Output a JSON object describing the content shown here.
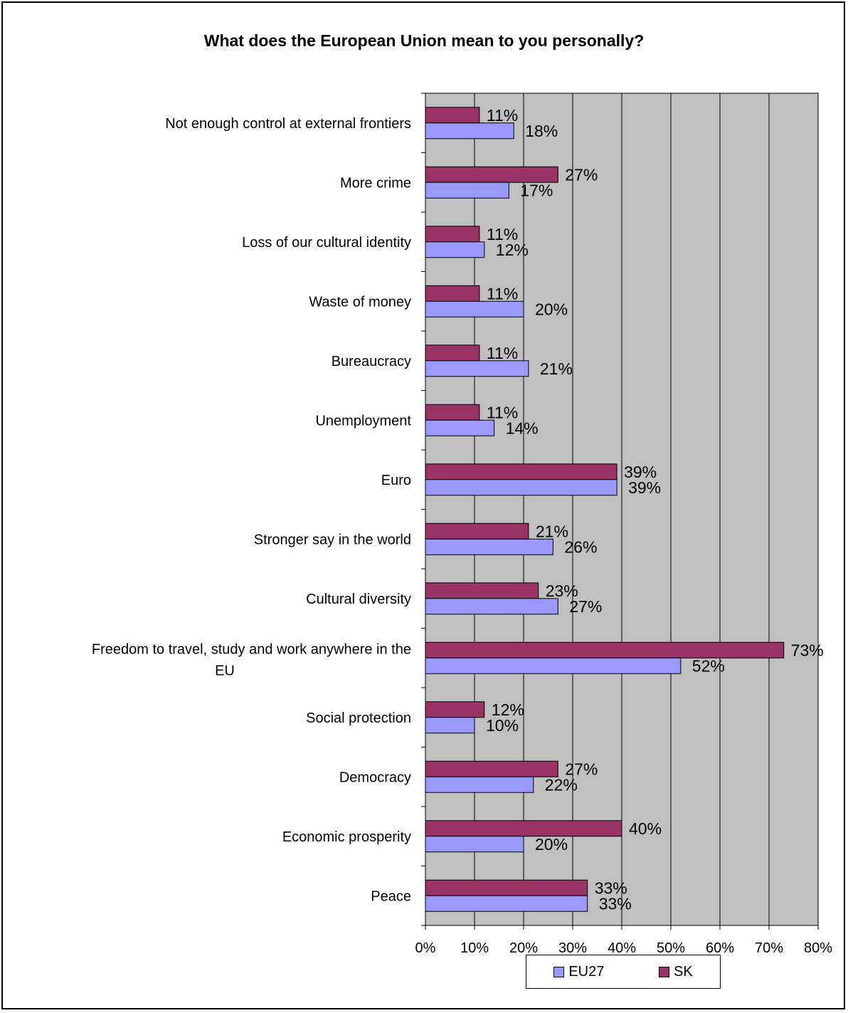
{
  "colors": {
    "plot_bg": "#c0c0c0",
    "gridline": "#000000",
    "bar_border": "#000000"
  },
  "chart_data": {
    "type": "bar",
    "orientation": "horizontal",
    "title": "What does the European Union mean to you personally?",
    "xlabel": "",
    "ylabel": "",
    "xlim": [
      0,
      80
    ],
    "x_ticks": [
      "0%",
      "10%",
      "20%",
      "30%",
      "40%",
      "50%",
      "60%",
      "70%",
      "80%"
    ],
    "grid": true,
    "legend_position": "bottom",
    "categories": [
      "Not enough control at external frontiers",
      "More crime",
      "Loss of our cultural identity",
      "Waste of money",
      "Bureaucracy",
      "Unemployment",
      "Euro",
      "Stronger say in the world",
      "Cultural diversity",
      "Freedom to travel, study and work anywhere in the EU",
      "Social protection",
      "Democracy",
      "Economic prosperity",
      "Peace"
    ],
    "series": [
      {
        "name": "SK",
        "color": "#993366",
        "values": [
          11,
          27,
          11,
          11,
          11,
          11,
          39,
          21,
          23,
          73,
          12,
          27,
          40,
          33
        ],
        "labels": [
          "11%",
          "27%",
          "11%",
          "11%",
          "11%",
          "11%",
          "39%",
          "21%",
          "23%",
          "73%",
          "12%",
          "27%",
          "40%",
          "33%"
        ]
      },
      {
        "name": "EU27",
        "color": "#9999ff",
        "values": [
          18,
          17,
          12,
          20,
          21,
          14,
          39,
          26,
          27,
          52,
          10,
          22,
          20,
          33
        ],
        "labels": [
          "18%",
          "17%",
          "12%",
          "20%",
          "21%",
          "14%",
          "39%",
          "26%",
          "27%",
          "52%",
          "10%",
          "22%",
          "20%",
          "33%"
        ]
      }
    ],
    "legend": [
      {
        "name": "EU27",
        "color": "#9999ff"
      },
      {
        "name": "SK",
        "color": "#993366"
      }
    ]
  }
}
